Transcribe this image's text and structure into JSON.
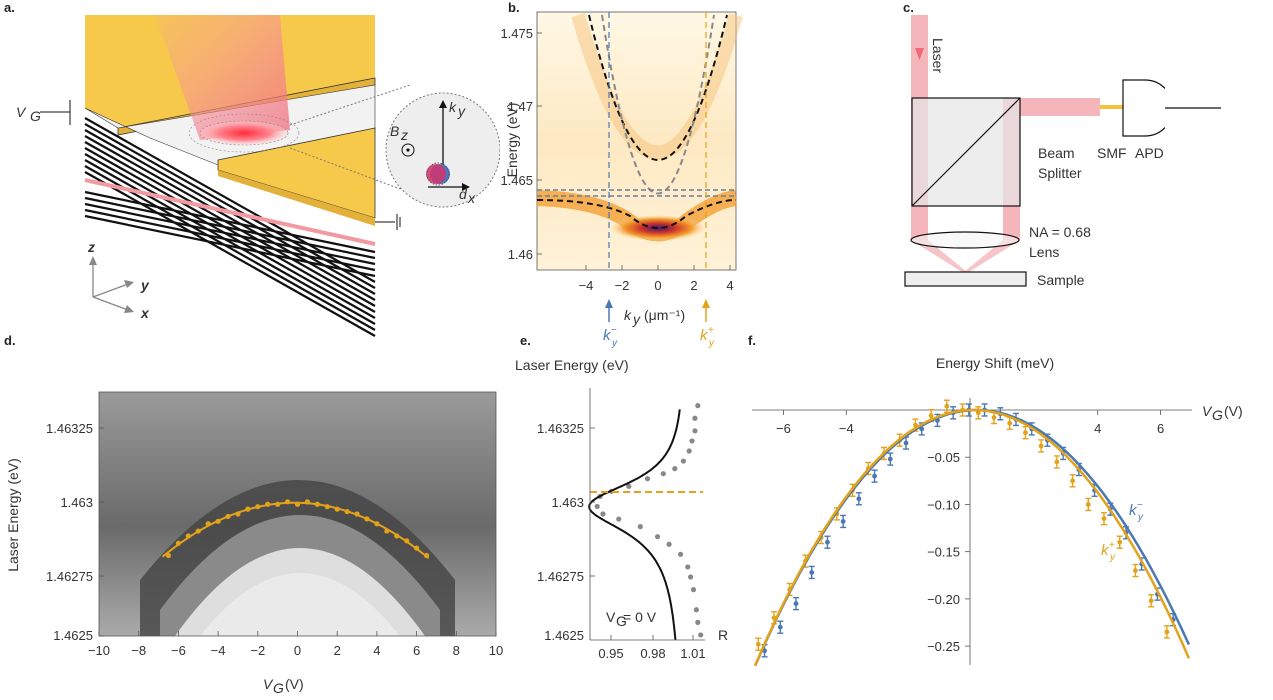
{
  "panels": {
    "a": {
      "letter": "a.",
      "labels": {
        "vg": "V",
        "vg_sub": "G",
        "bz": "B",
        "bz_sub": "z",
        "ky": "k",
        "ky_sub": "y",
        "dx": "d",
        "dx_sub": "x",
        "axis_x": "x",
        "axis_y": "y",
        "axis_z": "z"
      }
    },
    "b": {
      "letter": "b.",
      "ylabel": "Energy (eV)",
      "xlabel": "k",
      "xlabel_sub": "y",
      "xlabel_unit": "(μm⁻¹)",
      "kminus": "k",
      "kminus_sup": "−",
      "kminus_sub": "y",
      "kplus": "k",
      "kplus_sup": "+",
      "kplus_sub": "y",
      "yticks": [
        "1.475",
        "1.47",
        "1.465",
        "1.46"
      ],
      "xticks": [
        "−4",
        "−2",
        "0",
        "2",
        "4"
      ]
    },
    "c": {
      "letter": "c.",
      "laser": "Laser",
      "beam_splitter_1": "Beam",
      "beam_splitter_2": "Splitter",
      "smf": "SMF",
      "apd": "APD",
      "na": "NA = 0.68",
      "lens": "Lens",
      "sample": "Sample"
    },
    "d": {
      "letter": "d.",
      "ylabel": "Laser Energy (eV)",
      "xlabel": "V",
      "xlabel_sub": "G",
      "xlabel_unit": "(V)",
      "yticks": [
        "1.46325",
        "1.463",
        "1.46275",
        "1.4625"
      ],
      "xticks": [
        "−10",
        "−8",
        "−6",
        "−4",
        "−2",
        "0",
        "2",
        "4",
        "6",
        "8",
        "10"
      ]
    },
    "e": {
      "letter": "e.",
      "title": "Laser Energy (eV)",
      "xlabel": "R",
      "annotation": "V",
      "annotation_sub": "G",
      "annotation_rest": " = 0 V",
      "yticks": [
        "1.46325",
        "1.463",
        "1.46275",
        "1.4625"
      ],
      "xticks": [
        "0.95",
        "0.98",
        "1.01"
      ]
    },
    "f": {
      "letter": "f.",
      "title": "Energy Shift (meV)",
      "xlabel": "V",
      "xlabel_sub": "G",
      "xlabel_unit": "(V)",
      "legend_minus": "k",
      "legend_minus_sup": "−",
      "legend_minus_sub": "y",
      "legend_plus": "k",
      "legend_plus_sup": "+",
      "legend_plus_sub": "y",
      "xticks": [
        "−6",
        "−4",
        "4",
        "6"
      ],
      "yticks": [
        "−0.05",
        "−0.10",
        "−0.15",
        "−0.20",
        "−0.25"
      ]
    }
  },
  "colors": {
    "orange": "#e3a21a",
    "blue": "#4a78b5",
    "pink": "#f2a0a8",
    "gold": "#f5c23a"
  },
  "chart_data": [
    {
      "type": "scatter",
      "panel": "d",
      "xlabel": "V_G (V)",
      "ylabel": "Laser Energy (eV)",
      "xlim": [
        -10,
        10
      ],
      "ylim": [
        1.4625,
        1.4635
      ],
      "series": [
        {
          "x": [
            -6.5,
            -6,
            -5.5,
            -5,
            -4.5,
            -4,
            -3.5,
            -3,
            -2.5,
            -2,
            -1.5,
            -1,
            -0.5,
            0,
            0.5,
            1,
            1.5,
            2,
            2.5,
            3,
            3.5,
            4,
            4.5,
            5,
            5.5,
            6,
            6.5
          ],
          "y": [
            1.46283,
            1.46288,
            1.46291,
            1.46293,
            1.46296,
            1.46297,
            1.46299,
            1.463,
            1.46302,
            1.46303,
            1.46304,
            1.46304,
            1.46305,
            1.46304,
            1.46305,
            1.46304,
            1.46303,
            1.46302,
            1.46301,
            1.463,
            1.46298,
            1.46296,
            1.46293,
            1.46291,
            1.46289,
            1.46286,
            1.46283
          ]
        }
      ]
    },
    {
      "type": "scatter",
      "panel": "e",
      "xlabel": "R",
      "ylabel": "Laser Energy (eV)",
      "xlim": [
        0.935,
        1.015
      ],
      "ylim": [
        1.4625,
        1.4635
      ],
      "series": [
        {
          "x": [
            1.012,
            1.01,
            1.009,
            1.007,
            1.005,
            1.003,
            0.998,
            0.99,
            0.982,
            0.97,
            0.955,
            0.944,
            0.94,
            0.942,
            0.95,
            0.962,
            0.975,
            0.986,
            0.994,
            1.0,
            1.004,
            1.006,
            1.008,
            1.008,
            1.01
          ],
          "y": [
            1.46252,
            1.46257,
            1.46262,
            1.4627,
            1.46275,
            1.46279,
            1.46284,
            1.46288,
            1.46291,
            1.46295,
            1.46298,
            1.463,
            1.46303,
            1.46307,
            1.46309,
            1.46311,
            1.46314,
            1.46316,
            1.46318,
            1.46321,
            1.46325,
            1.46329,
            1.46333,
            1.46338,
            1.46343
          ]
        }
      ]
    },
    {
      "type": "scatter",
      "panel": "f",
      "xlabel": "V_G (V)",
      "ylabel": "Energy Shift (meV)",
      "xlim": [
        -7,
        7
      ],
      "ylim": [
        -0.27,
        0.01
      ],
      "series": [
        {
          "name": "k_y^-",
          "x": [
            -6.6,
            -6.1,
            -5.6,
            -5.1,
            -4.6,
            -4.1,
            -3.6,
            -3.1,
            -2.6,
            -2.1,
            -1.6,
            -1.1,
            -0.6,
            -0.1,
            0.4,
            0.9,
            1.4,
            1.9,
            2.4,
            2.9,
            3.4,
            3.9,
            4.4,
            4.9,
            5.4,
            5.9,
            6.4
          ],
          "y": [
            -0.255,
            -0.23,
            -0.205,
            -0.172,
            -0.14,
            -0.118,
            -0.094,
            -0.07,
            -0.052,
            -0.035,
            -0.02,
            -0.011,
            -0.003,
            0.0,
            0.0,
            -0.004,
            -0.01,
            -0.02,
            -0.032,
            -0.046,
            -0.063,
            -0.085,
            -0.105,
            -0.13,
            -0.163,
            -0.195,
            -0.222
          ]
        },
        {
          "name": "k_y^+",
          "x": [
            -6.8,
            -6.3,
            -5.8,
            -5.3,
            -4.8,
            -4.3,
            -3.8,
            -3.3,
            -2.8,
            -2.3,
            -1.8,
            -1.3,
            -0.8,
            -0.3,
            0.2,
            0.7,
            1.2,
            1.7,
            2.2,
            2.7,
            3.2,
            3.7,
            4.2,
            4.7,
            5.2,
            5.7,
            6.2
          ],
          "y": [
            -0.248,
            -0.22,
            -0.19,
            -0.16,
            -0.135,
            -0.11,
            -0.085,
            -0.062,
            -0.046,
            -0.032,
            -0.016,
            -0.006,
            0.004,
            0.0,
            -0.003,
            -0.008,
            -0.014,
            -0.024,
            -0.038,
            -0.055,
            -0.075,
            -0.1,
            -0.115,
            -0.14,
            -0.17,
            -0.202,
            -0.235
          ]
        }
      ]
    }
  ]
}
